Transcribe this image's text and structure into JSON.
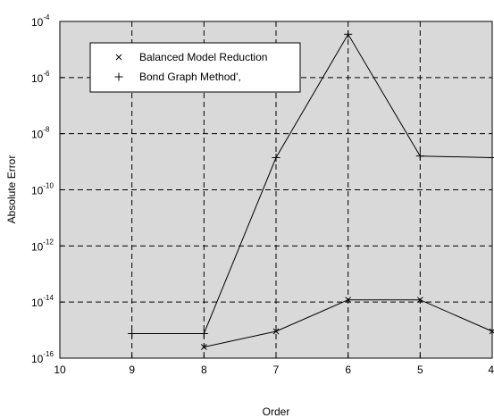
{
  "chart_data": {
    "type": "line",
    "title": "",
    "xlabel": "Order",
    "ylabel": "Absolute Error",
    "x_reversed": true,
    "xlim": [
      10,
      4
    ],
    "ylim": [
      1e-16,
      0.0001
    ],
    "yscale": "log",
    "grid": true,
    "legend_position": "top-left",
    "x_ticks": [
      10,
      9,
      8,
      7,
      6,
      5,
      4
    ],
    "y_ticks": [
      {
        "base": "10",
        "exp": "-16",
        "value": 1e-16
      },
      {
        "base": "10",
        "exp": "-14",
        "value": 1e-14
      },
      {
        "base": "10",
        "exp": "-12",
        "value": 1e-12
      },
      {
        "base": "10",
        "exp": "-10",
        "value": 1e-10
      },
      {
        "base": "10",
        "exp": "-8",
        "value": 1e-08
      },
      {
        "base": "10",
        "exp": "-6",
        "value": 1e-06
      },
      {
        "base": "10",
        "exp": "-4",
        "value": 0.0001
      }
    ],
    "series": [
      {
        "name": "Balanced Model Reduction",
        "marker": "x",
        "points": [
          {
            "x": 8,
            "y": 2.5e-16
          },
          {
            "x": 7,
            "y": 9e-16
          },
          {
            "x": 6,
            "y": 1.2e-14
          },
          {
            "x": 5,
            "y": 1.2e-14
          },
          {
            "x": 4,
            "y": 9e-16
          }
        ]
      },
      {
        "name": "Bond Graph Method',",
        "marker": "+",
        "points": [
          {
            "x": 9,
            "y": 7.5e-16
          },
          {
            "x": 8,
            "y": 7.5e-16
          },
          {
            "x": 7,
            "y": 1.4e-09
          },
          {
            "x": 6,
            "y": 3.5e-05
          },
          {
            "x": 5,
            "y": 1.6e-09
          },
          {
            "x": 4,
            "y": 1.4e-09
          }
        ]
      }
    ],
    "colors": {
      "plot_background": "#d9d9d9",
      "line": "#000000",
      "grid": "#000000"
    }
  }
}
